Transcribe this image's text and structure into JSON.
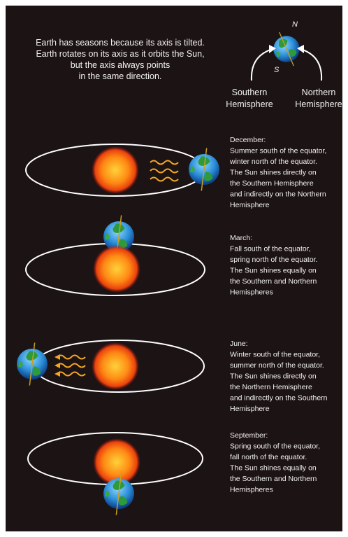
{
  "intro": {
    "lines": [
      "Earth has seasons because its axis is tilted.",
      "Earth rotates on its axis as it orbits the Sun,",
      "but the axis always points",
      "in the same direction."
    ]
  },
  "globe": {
    "north": "N",
    "south": "S"
  },
  "hemispheres": [
    {
      "lines": [
        "Southern",
        "Hemisphere"
      ]
    },
    {
      "lines": [
        "Northern",
        "Hemisphere"
      ]
    }
  ],
  "seasons": [
    {
      "lines": [
        "December:",
        "Summer south of the equator,",
        "winter north of the equator.",
        "The Sun shines directly on",
        "the Southern Hemisphere",
        "and indirectly on the Northern",
        "Hemisphere"
      ]
    },
    {
      "lines": [
        "March:",
        "Fall south of the equator,",
        "spring north of the equator.",
        "The Sun shines equally on",
        "the Southern and Northern",
        "Hemispheres"
      ]
    },
    {
      "lines": [
        "June:",
        "Winter south of the equator,",
        "summer north of the equator.",
        "The Sun shines directly on",
        "the Northern Hemisphere",
        "and indirectly on the Southern",
        "Hemisphere"
      ]
    },
    {
      "lines": [
        "September:",
        "Spring south of the equator,",
        "fall north of the equator.",
        "The Sun shines equally on",
        "the Southern and Northern",
        "Hemispheres"
      ]
    }
  ]
}
